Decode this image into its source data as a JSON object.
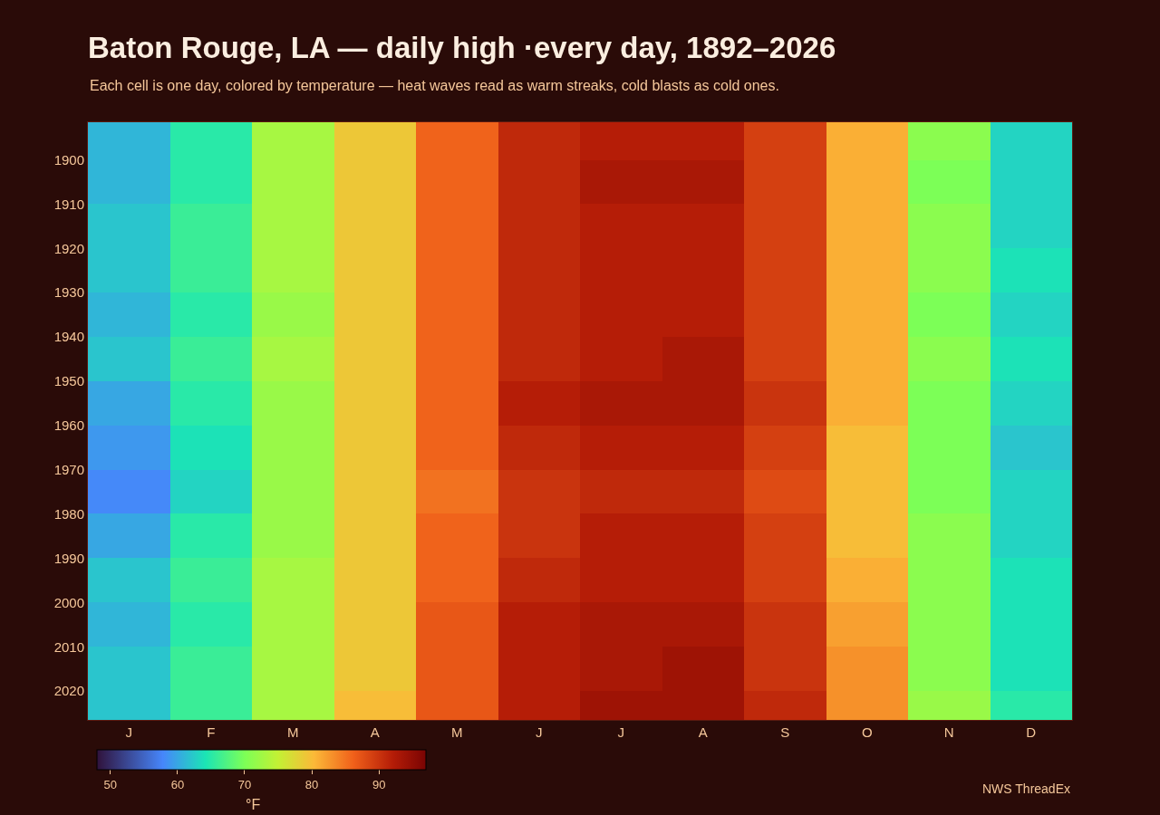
{
  "chart_data": {
    "type": "heatmap",
    "title": "Baton Rouge, LA — daily high ·every day, 1892–2026",
    "subtitle": "Each cell is one day, colored by temperature — heat waves read as warm streaks, cold blasts as cold ones.",
    "annotations": [
      "NWS ThreadEx"
    ],
    "clabel": "°F",
    "categories": [
      "J",
      "F",
      "M",
      "A",
      "M",
      "J",
      "J",
      "A",
      "S",
      "O",
      "N",
      "D"
    ],
    "y": [
      1895,
      1905,
      1915,
      1925,
      1935,
      1945,
      1955,
      1965,
      1975,
      1985,
      1995,
      2005,
      2015,
      2025
    ],
    "cells": [
      [
        61,
        65,
        73,
        79,
        86,
        91,
        92,
        92,
        89,
        81,
        71,
        63
      ],
      [
        61,
        65,
        73,
        79,
        86,
        91,
        93,
        93,
        89,
        81,
        70,
        63
      ],
      [
        62,
        66,
        73,
        79,
        86,
        91,
        92,
        92,
        89,
        81,
        71,
        63
      ],
      [
        62,
        66,
        73,
        79,
        86,
        91,
        92,
        92,
        89,
        81,
        71,
        64
      ],
      [
        61,
        65,
        72,
        79,
        86,
        91,
        92,
        92,
        89,
        81,
        70,
        63
      ],
      [
        62,
        66,
        73,
        79,
        86,
        91,
        92,
        93,
        89,
        81,
        71,
        64
      ],
      [
        60,
        65,
        72,
        79,
        86,
        92,
        93,
        93,
        90,
        81,
        70,
        63
      ],
      [
        59,
        64,
        72,
        79,
        86,
        91,
        92,
        92,
        89,
        80,
        70,
        62
      ],
      [
        58,
        63,
        72,
        79,
        85,
        90,
        91,
        91,
        88,
        80,
        70,
        63
      ],
      [
        60,
        65,
        72,
        79,
        86,
        90,
        92,
        92,
        89,
        80,
        71,
        63
      ],
      [
        62,
        66,
        73,
        79,
        86,
        91,
        92,
        92,
        89,
        81,
        71,
        64
      ],
      [
        61,
        65,
        73,
        79,
        87,
        92,
        93,
        93,
        90,
        82,
        71,
        64
      ],
      [
        62,
        66,
        73,
        79,
        87,
        92,
        93,
        94,
        90,
        83,
        71,
        64
      ],
      [
        62,
        66,
        73,
        80,
        87,
        92,
        94,
        94,
        91,
        83,
        72,
        65
      ]
    ],
    "ylim": [
      2026.5,
      1891.5
    ],
    "yticks": [
      1900,
      1910,
      1920,
      1930,
      1940,
      1950,
      1960,
      1970,
      1980,
      1990,
      2000,
      2010,
      2020
    ],
    "clim": [
      48,
      97
    ],
    "cticks": [
      50,
      60,
      70,
      80,
      90
    ]
  }
}
